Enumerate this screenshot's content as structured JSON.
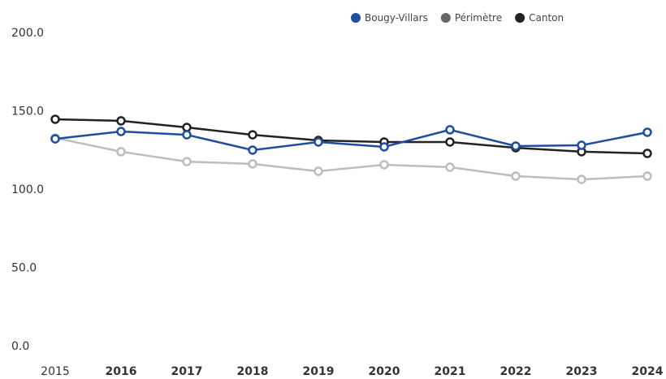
{
  "chart_data": {
    "type": "line",
    "categories": [
      "2015",
      "2016",
      "2017",
      "2018",
      "2019",
      "2020",
      "2021",
      "2022",
      "2023",
      "2024"
    ],
    "series": [
      {
        "name": "Bougy-Villars",
        "color": "#1f4e9e",
        "values": [
          135.7,
          140.4,
          138.3,
          128.5,
          133.7,
          130.6,
          141.5,
          131.1,
          131.6,
          139.9
        ]
      },
      {
        "name": "Périmètre",
        "color": "#bdbdbd",
        "values": [
          136.3,
          127.5,
          121.2,
          119.7,
          115.0,
          119.2,
          117.6,
          111.9,
          109.8,
          111.9
        ]
      },
      {
        "name": "Canton",
        "color": "#222222",
        "values": [
          148.2,
          147.2,
          143.0,
          138.3,
          134.7,
          133.7,
          133.7,
          130.0,
          127.5,
          126.4
        ]
      }
    ],
    "ylim": [
      0,
      200
    ],
    "yticks": [
      {
        "value": 0,
        "label": "0.0"
      },
      {
        "value": 50,
        "label": "50.0"
      },
      {
        "value": 100,
        "label": "100.0"
      },
      {
        "value": 150,
        "label": "150.0"
      },
      {
        "value": 200,
        "label": "200.0"
      }
    ],
    "grid": false,
    "legend": "top"
  }
}
